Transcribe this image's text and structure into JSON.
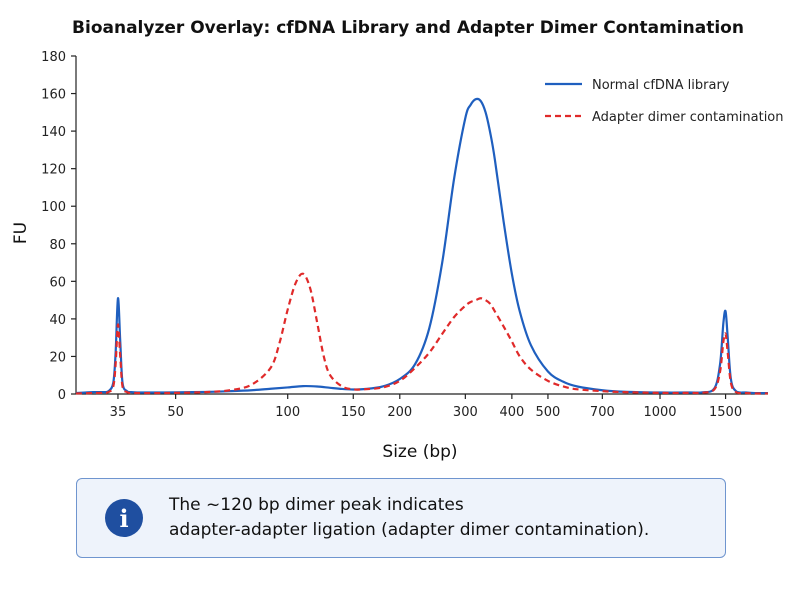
{
  "chart_data": {
    "type": "line",
    "title": "Bioanalyzer Overlay: cfDNA Library and Adapter Dimer Contamination",
    "xlabel": "Size (bp)",
    "ylabel": "FU",
    "x_scale": "log",
    "xlim": [
      27,
      1950
    ],
    "ylim": [
      0,
      180
    ],
    "x_ticks": [
      35,
      50,
      100,
      150,
      200,
      300,
      400,
      500,
      700,
      1000,
      1500
    ],
    "x_tick_labels": [
      "35",
      "50",
      "100",
      "150",
      "200",
      "300",
      "400",
      "500",
      "700",
      "1000",
      "1500"
    ],
    "y_ticks": [
      0,
      20,
      40,
      60,
      80,
      100,
      120,
      140,
      160,
      180
    ],
    "y_tick_labels": [
      "0",
      "20",
      "40",
      "60",
      "80",
      "100",
      "120",
      "140",
      "160",
      "180"
    ],
    "grid": false,
    "legend_position": "top-right",
    "series": [
      {
        "name": "Normal cfDNA library",
        "color": "#1f5fbf",
        "style": "solid",
        "x": [
          27,
          30,
          32,
          33,
          34,
          34.5,
          35,
          35.5,
          36,
          37,
          38,
          40,
          45,
          50,
          60,
          70,
          80,
          90,
          100,
          110,
          120,
          130,
          140,
          150,
          160,
          180,
          200,
          220,
          240,
          260,
          280,
          300,
          310,
          320,
          330,
          340,
          350,
          360,
          380,
          400,
          420,
          450,
          500,
          550,
          600,
          700,
          800,
          1000,
          1200,
          1300,
          1400,
          1450,
          1480,
          1500,
          1520,
          1550,
          1600,
          1700,
          1800,
          1950
        ],
        "y": [
          0.5,
          1,
          1,
          1.5,
          6,
          22,
          51,
          28,
          6,
          1.5,
          1,
          0.8,
          0.8,
          0.9,
          1.1,
          1.5,
          2,
          2.8,
          3.5,
          4.2,
          4.0,
          3.3,
          2.7,
          2.4,
          2.6,
          4,
          8,
          16,
          35,
          70,
          115,
          147,
          154,
          157,
          156,
          150,
          139,
          125,
          92,
          64,
          44,
          26,
          12,
          6.5,
          4,
          2,
          1.2,
          0.8,
          0.8,
          0.9,
          3,
          16,
          38,
          44,
          30,
          8,
          1.5,
          0.8,
          0.5,
          0.5
        ]
      },
      {
        "name": "Adapter dimer contamination",
        "color": "#e02a2a",
        "style": "dashed",
        "x": [
          27,
          30,
          32,
          33,
          34,
          34.5,
          35,
          35.5,
          36,
          37,
          38,
          40,
          45,
          50,
          60,
          70,
          80,
          90,
          95,
          100,
          105,
          110,
          115,
          120,
          125,
          130,
          140,
          150,
          160,
          180,
          200,
          220,
          240,
          260,
          280,
          300,
          310,
          320,
          330,
          340,
          350,
          360,
          380,
          400,
          420,
          450,
          500,
          550,
          600,
          700,
          800,
          1000,
          1200,
          1300,
          1400,
          1450,
          1480,
          1500,
          1520,
          1550,
          1600,
          1700,
          1800,
          1950
        ],
        "y": [
          0.3,
          0.5,
          0.6,
          1,
          4,
          16,
          37,
          20,
          4,
          1,
          0.6,
          0.5,
          0.5,
          0.6,
          1,
          2,
          5,
          14,
          27,
          45,
          59,
          64,
          56,
          38,
          20,
          10,
          4,
          2.5,
          2.5,
          3.5,
          7,
          14,
          22,
          32,
          41,
          47,
          49,
          50,
          51,
          50,
          48,
          44,
          36,
          28,
          20,
          13,
          7,
          4,
          2.5,
          1.5,
          1,
          0.6,
          0.6,
          0.7,
          2.5,
          12,
          28,
          32,
          22,
          6,
          1,
          0.5,
          0.3,
          0.3
        ]
      }
    ]
  },
  "info": {
    "icon": "info-icon",
    "glyph": "i",
    "line1": "The ~120 bp dimer peak indicates",
    "line2": "adapter-adapter ligation (adapter dimer contamination)."
  }
}
